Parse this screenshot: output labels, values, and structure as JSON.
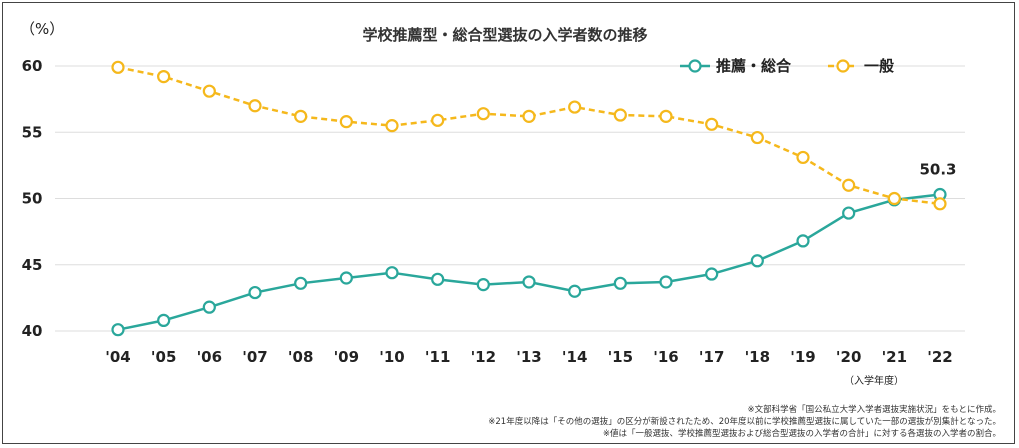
{
  "chart_data": {
    "type": "line",
    "title": "学校推薦型・総合型選抜の入学者数の推移",
    "ylabel": "（%）",
    "xlabel": "（入学年度）",
    "ylim": [
      40,
      60
    ],
    "yticks": [
      "60",
      "55",
      "50",
      "45",
      "40"
    ],
    "categories": [
      "'04",
      "'05",
      "'06",
      "'07",
      "'08",
      "'09",
      "'10",
      "'11",
      "'12",
      "'13",
      "'14",
      "'15",
      "'16",
      "'17",
      "'18",
      "'19",
      "'20",
      "'21",
      "'22"
    ],
    "series": [
      {
        "name": "推薦・総合",
        "color": "#2aa79b",
        "style": "solid",
        "values": [
          40.1,
          40.8,
          41.8,
          42.9,
          43.6,
          44.0,
          44.4,
          43.9,
          43.5,
          43.7,
          43.0,
          43.6,
          43.7,
          44.3,
          45.3,
          46.8,
          48.9,
          49.9,
          50.3
        ]
      },
      {
        "name": "一般",
        "color": "#f5b81c",
        "style": "dashed",
        "values": [
          59.9,
          59.2,
          58.1,
          57.0,
          56.2,
          55.8,
          55.5,
          55.9,
          56.4,
          56.2,
          56.9,
          56.3,
          56.2,
          55.6,
          54.6,
          53.1,
          51.0,
          50.0,
          49.6
        ]
      }
    ],
    "annotations": [
      {
        "series": 0,
        "index": 18,
        "text": "50.3"
      }
    ],
    "legend": "top-right"
  },
  "notes": [
    "※文部科学省「国公私立大学入学者選抜実施状況」をもとに作成。",
    "※21年度以降は「その他の選抜」の区分が新設されたため、20年度以前に学校推薦型選抜に属していた一部の選抜が別集計となった。",
    "※値は「一般選抜、学校推薦型選抜および総合型選抜の入学者の合計」に対する各選抜の入学者の割合。"
  ]
}
